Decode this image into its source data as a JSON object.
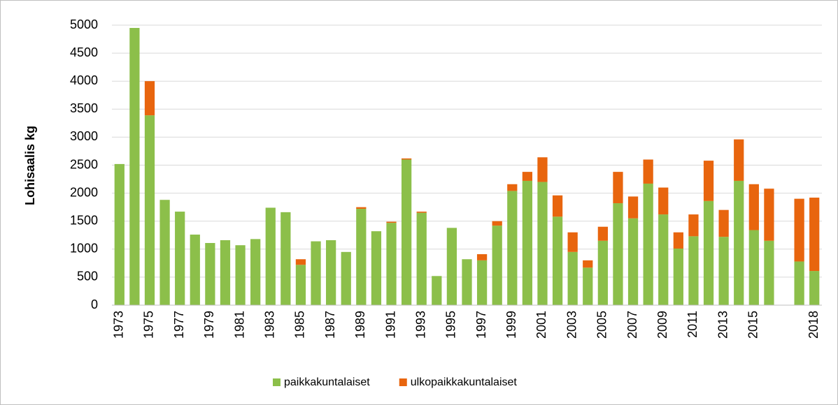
{
  "chart_data": {
    "type": "stacked_bar",
    "y_label": "Lohisaalis kg",
    "categories": [
      "1973",
      null,
      "1975",
      null,
      "1977",
      null,
      "1979",
      null,
      "1981",
      null,
      "1983",
      null,
      "1985",
      null,
      "1987",
      null,
      "1989",
      null,
      "1991",
      null,
      "1993",
      null,
      "1995",
      null,
      "1997",
      null,
      "1999",
      null,
      "2001",
      null,
      "2003",
      null,
      "2005",
      null,
      "2007",
      null,
      "2009",
      null,
      "2011",
      null,
      "2013",
      null,
      "2015",
      null,
      null,
      null,
      "2018"
    ],
    "series": [
      {
        "name": "paikkakuntalaiset",
        "color": "#8cbf4a",
        "values": [
          2520,
          4950,
          3390,
          1880,
          1670,
          1260,
          1110,
          1160,
          1070,
          1180,
          1740,
          1660,
          720,
          1140,
          1160,
          950,
          1720,
          1320,
          1470,
          2600,
          1650,
          520,
          1380,
          820,
          800,
          1420,
          2040,
          2220,
          2200,
          1580,
          950,
          670,
          1150,
          1820,
          1550,
          2170,
          1620,
          1010,
          1230,
          1860,
          1220,
          2220,
          1340,
          1150,
          null,
          780,
          610
        ]
      },
      {
        "name": "ulkopaikkakuntalaiset",
        "color": "#e8650e",
        "values": [
          0,
          0,
          610,
          0,
          0,
          0,
          0,
          0,
          0,
          0,
          0,
          0,
          100,
          0,
          0,
          0,
          30,
          0,
          20,
          20,
          20,
          0,
          0,
          0,
          110,
          80,
          120,
          160,
          440,
          380,
          350,
          130,
          250,
          560,
          390,
          430,
          480,
          290,
          390,
          720,
          480,
          740,
          820,
          930,
          null,
          1120,
          1310
        ]
      }
    ],
    "ylim": [
      0,
      5000
    ],
    "yticks": [
      0,
      500,
      1000,
      1500,
      2000,
      2500,
      3000,
      3500,
      4000,
      4500,
      5000
    ],
    "grid": true
  }
}
